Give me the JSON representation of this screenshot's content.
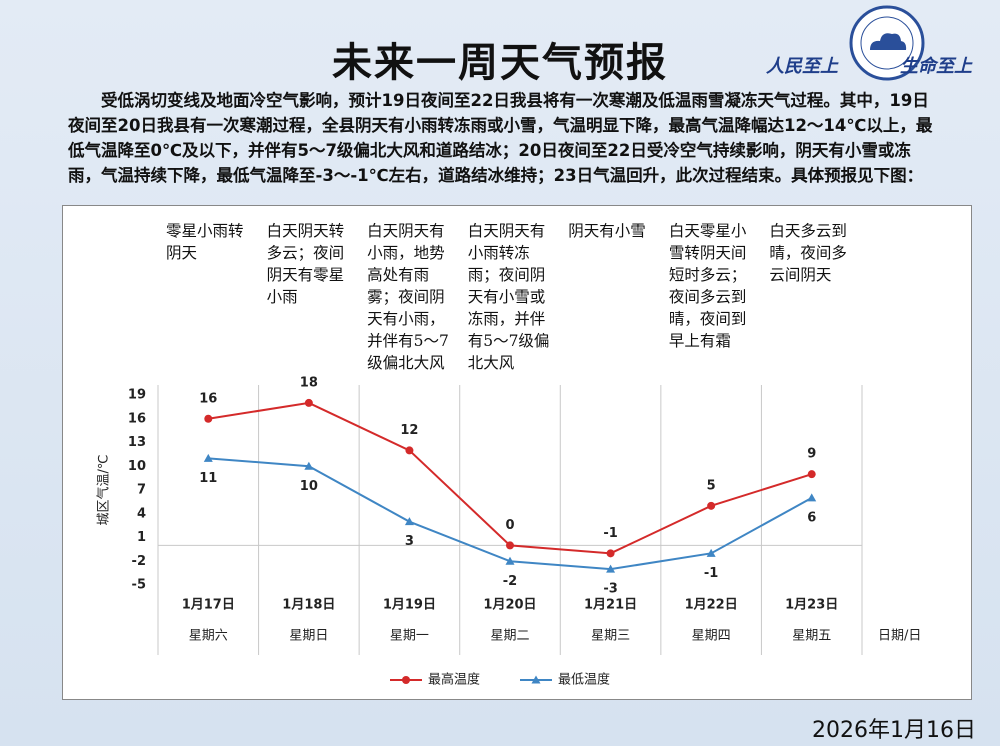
{
  "header": {
    "title": "未来一周天气预报",
    "slogan_left": "人民至上",
    "slogan_right": "生命至上"
  },
  "intro": "受低涡切变线及地面冷空气影响，预计19日夜间至22日我县将有一次寒潮及低温雨雪凝冻天气过程。其中，19日夜间至20日我县有一次寒潮过程，全县阴天有小雨转冻雨或小雪，气温明显下降，最高气温降幅达12～14℃以上，最低气温降至0℃及以下，并伴有5～7级偏北大风和道路结冰；20日夜间至22日受冷空气持续影响，阴天有小雪或冻雨，气温持续下降，最低气温降至-3～-1℃左右，道路结冰维持；23日气温回升，此次过程结束。具体预报见下图：",
  "date": "2026年1月16日",
  "chart_data": {
    "type": "line",
    "y_label": "城区气温/℃",
    "x_label": "日期/日",
    "categories": [
      "1月17日",
      "1月18日",
      "1月19日",
      "1月20日",
      "1月21日",
      "1月22日",
      "1月23日"
    ],
    "weekdays": [
      "星期六",
      "星期日",
      "星期一",
      "星期二",
      "星期三",
      "星期四",
      "星期五"
    ],
    "descriptions": [
      "零星小雨转阴天",
      "白天阴天转多云；夜间阴天有零星小雨",
      "白天阴天有小雨，地势高处有雨雾；夜间阴天有小雨，并伴有5～7级偏北大风",
      "白天阴天有小雨转冻雨；夜间阴天有小雪或冻雨，并伴有5～7级偏北大风",
      "阴天有小雪",
      "白天零星小雪转阴天间短时多云；夜间多云到晴，夜间到早上有霜",
      "白天多云到晴，夜间多云间阴天"
    ],
    "series": [
      {
        "name": "最高温度",
        "color": "#d42a2a",
        "marker": "circle",
        "values": [
          16,
          18,
          12,
          0,
          -1,
          5,
          9
        ]
      },
      {
        "name": "最低温度",
        "color": "#3f86c4",
        "marker": "triangle",
        "values": [
          11,
          10,
          3,
          -2,
          -3,
          -1,
          6
        ]
      }
    ],
    "ylim": [
      -5,
      19
    ],
    "yticks": [
      19,
      16,
      13,
      10,
      7,
      4,
      1,
      -2,
      -5
    ]
  }
}
